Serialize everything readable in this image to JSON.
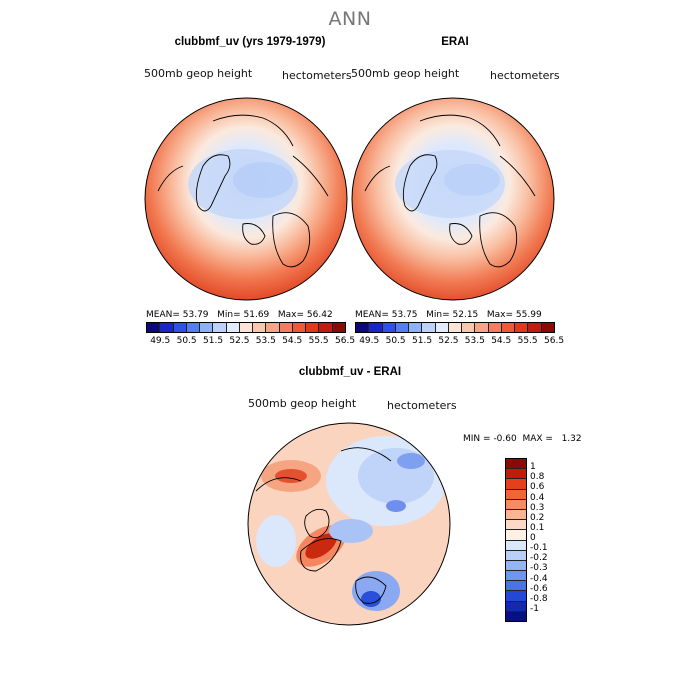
{
  "figure": {
    "title": "ANN"
  },
  "panels": [
    {
      "title": "clubbmf_uv (yrs 1979-1979)",
      "variable": "500mb geop height",
      "units": "hectometers",
      "stats": {
        "mean_label": "MEAN=",
        "mean": "53.79",
        "min_label": "Min=",
        "min": "51.69",
        "max_label": "Max=",
        "max": "56.42"
      }
    },
    {
      "title": "ERAI",
      "variable": "500mb geop height",
      "units": "hectometers",
      "stats": {
        "mean_label": "MEAN=",
        "mean": "53.75",
        "min_label": "Min=",
        "min": "52.15",
        "max_label": "Max=",
        "max": "55.99"
      }
    },
    {
      "title": "clubbmf_uv - ERAI",
      "variable": "500mb geop height",
      "units": "hectometers",
      "stats": {
        "min_label": "MIN =",
        "min": "-0.60",
        "max_label": "MAX =",
        "max": "1.32"
      }
    }
  ],
  "colorbar_abs": {
    "labels": [
      "49.5",
      "50.5",
      "51.5",
      "52.5",
      "53.5",
      "54.5",
      "55.5",
      "56.5"
    ],
    "colors": [
      "#0c0a7a",
      "#1b26c4",
      "#2e52e6",
      "#557ef0",
      "#8eb0f7",
      "#bcd2fb",
      "#e4ecfb",
      "#fbe3d6",
      "#fbc6ac",
      "#f8a483",
      "#f47e5c",
      "#ed5a37",
      "#df3a1a",
      "#bf1d0c",
      "#8a0a04"
    ]
  },
  "colorbar_diff": {
    "labels": [
      "1",
      "0.8",
      "0.6",
      "0.4",
      "0.3",
      "0.2",
      "0.1",
      "0",
      "-0.1",
      "-0.2",
      "-0.3",
      "-0.4",
      "-0.6",
      "-0.8",
      "-1"
    ],
    "colors": [
      "#8a0a04",
      "#c01c0a",
      "#e5401c",
      "#f36436",
      "#f78b62",
      "#fab593",
      "#fcd9c4",
      "#fdf0e4",
      "#dbe8fb",
      "#b8d0f8",
      "#93b5f4",
      "#6e96ee",
      "#4974e6",
      "#2348d6",
      "#122ab0",
      "#080f80"
    ]
  },
  "style": {
    "map_background": "#f9b49a",
    "land_outline": "#000000"
  }
}
